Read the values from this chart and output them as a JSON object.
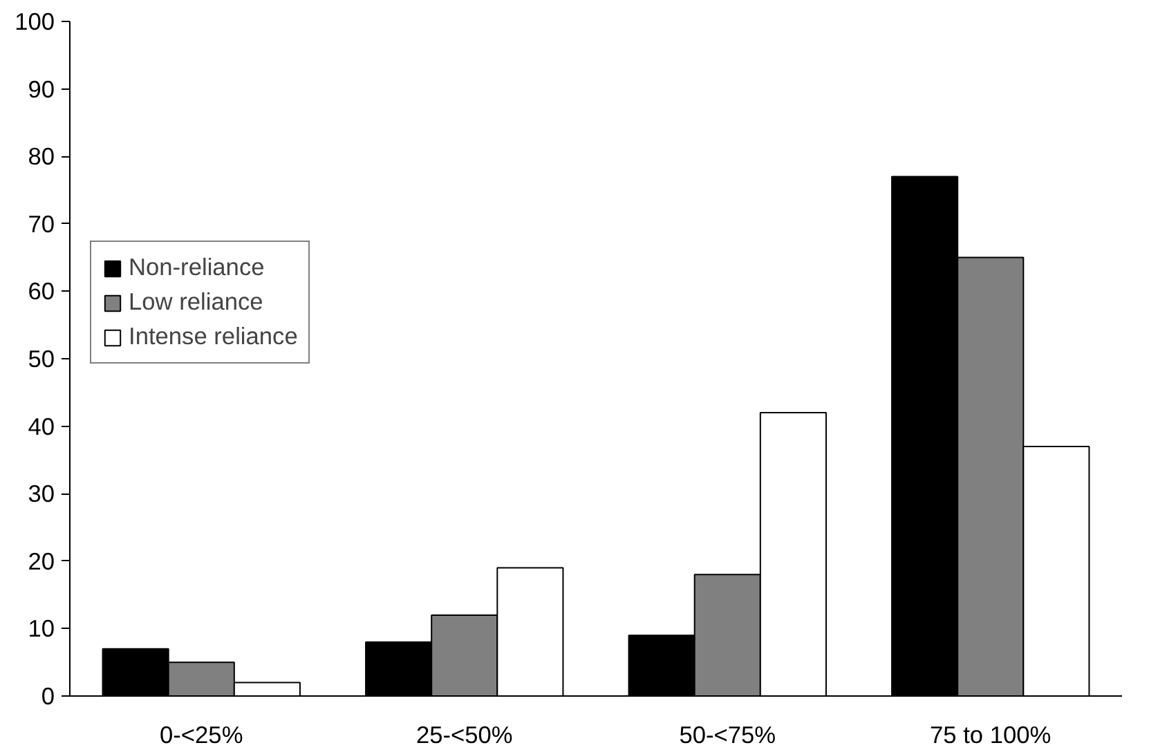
{
  "chart_data": {
    "type": "bar",
    "categories": [
      "0-<25%",
      "25-<50%",
      "50-<75%",
      "75 to 100%"
    ],
    "series": [
      {
        "name": "Non-reliance",
        "color": "#000000",
        "values": [
          7,
          8,
          9,
          77
        ]
      },
      {
        "name": "Low reliance",
        "color": "#808080",
        "values": [
          5,
          12,
          18,
          65
        ]
      },
      {
        "name": "Intense reliance",
        "color": "#ffffff",
        "values": [
          2,
          19,
          42,
          37
        ]
      }
    ],
    "ylim": [
      0,
      100
    ],
    "yticks": [
      0,
      10,
      20,
      30,
      40,
      50,
      60,
      70,
      80,
      90,
      100
    ],
    "grid": false,
    "legend": "top left"
  }
}
